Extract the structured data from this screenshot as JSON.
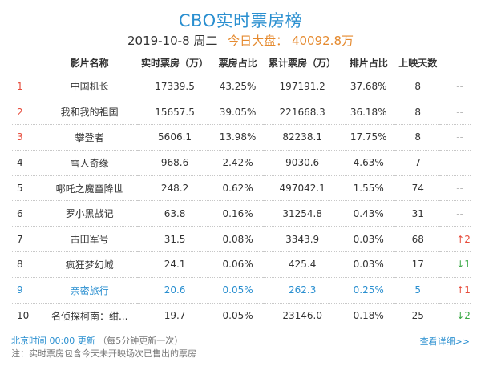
{
  "header": {
    "title": "CBO实时票房榜",
    "date": "2019-10-8 周二",
    "total_label": "今日大盘：",
    "total_value": "40092.8万"
  },
  "table": {
    "columns": [
      "影片名称",
      "实时票房（万）",
      "票房占比",
      "累计票房（万）",
      "排片占比",
      "上映天数"
    ],
    "rows": [
      {
        "rank": "1",
        "name": "中国机长",
        "realtime": "17339.5",
        "share": "43.25%",
        "total": "197191.2",
        "screen": "37.68%",
        "days": "8",
        "trend": "--"
      },
      {
        "rank": "2",
        "name": "我和我的祖国",
        "realtime": "15657.5",
        "share": "39.05%",
        "total": "221668.3",
        "screen": "36.18%",
        "days": "8",
        "trend": "--"
      },
      {
        "rank": "3",
        "name": "攀登者",
        "realtime": "5606.1",
        "share": "13.98%",
        "total": "82238.1",
        "screen": "17.75%",
        "days": "8",
        "trend": "--"
      },
      {
        "rank": "4",
        "name": "雪人奇缘",
        "realtime": "968.6",
        "share": "2.42%",
        "total": "9030.6",
        "screen": "4.63%",
        "days": "7",
        "trend": "--"
      },
      {
        "rank": "5",
        "name": "哪吒之魔童降世",
        "realtime": "248.2",
        "share": "0.62%",
        "total": "497042.1",
        "screen": "1.55%",
        "days": "74",
        "trend": "--"
      },
      {
        "rank": "6",
        "name": "罗小黑战记",
        "realtime": "63.8",
        "share": "0.16%",
        "total": "31254.8",
        "screen": "0.43%",
        "days": "31",
        "trend": "--"
      },
      {
        "rank": "7",
        "name": "古田军号",
        "realtime": "31.5",
        "share": "0.08%",
        "total": "3343.9",
        "screen": "0.03%",
        "days": "68",
        "trend": "↑2"
      },
      {
        "rank": "8",
        "name": "疯狂梦幻城",
        "realtime": "24.1",
        "share": "0.06%",
        "total": "425.4",
        "screen": "0.03%",
        "days": "17",
        "trend": "↓1"
      },
      {
        "rank": "9",
        "name": "亲密旅行",
        "realtime": "20.6",
        "share": "0.05%",
        "total": "262.3",
        "screen": "0.25%",
        "days": "5",
        "trend": "↑1"
      },
      {
        "rank": "10",
        "name": "名侦探柯南：绀...",
        "realtime": "19.7",
        "share": "0.05%",
        "total": "23146.0",
        "screen": "0.18%",
        "days": "25",
        "trend": "↓2"
      }
    ]
  },
  "footer": {
    "time_label": "北京时间 00:00 更新",
    "interval": "（每5分钟更新一次）",
    "note": "注：实时票房包含今天未开映场次已售出的票房",
    "more_link": "查看详细>>"
  },
  "colors": {
    "accent": "#2a8fd0",
    "top_rank": "#e74c3c",
    "up": "#e74c3c",
    "down": "#3aa845",
    "total": "#e58a2f"
  }
}
